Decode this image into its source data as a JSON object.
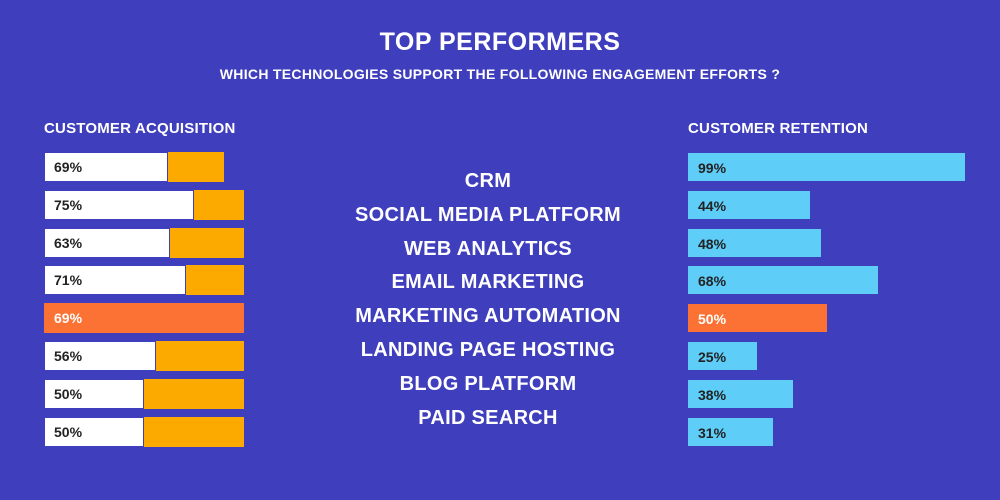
{
  "title": "TOP PERFORMERS",
  "subtitle": "WHICH TECHNOLOGIES SUPPORT THE FOLLOWING ENGAGEMENT EFFORTS ?",
  "colors": {
    "background": "#3f3ebd",
    "acquisition_bar": "#fdaa00",
    "retention_bar": "#5ecdf8",
    "highlight": "#fb7234",
    "text": "#ffffff"
  },
  "chart_data": {
    "type": "bar",
    "categories": [
      "CRM",
      "SOCIAL MEDIA PLATFORM",
      "WEB ANALYTICS",
      "EMAIL MARKETING",
      "MARKETING AUTOMATION",
      "LANDING PAGE HOSTING",
      "BLOG PLATFORM",
      "PAID SEARCH"
    ],
    "highlight_index": 4,
    "series": [
      {
        "name": "CUSTOMER ACQUISITION",
        "values": [
          69,
          75,
          63,
          71,
          69,
          56,
          50,
          50
        ],
        "labels": [
          "69%",
          "75%",
          "63%",
          "71%",
          "69%",
          "56%",
          "50%",
          "50%"
        ],
        "bar_lengths": [
          0.9,
          1.0,
          1.0,
          1.0,
          1.0,
          1.0,
          1.0,
          1.0
        ]
      },
      {
        "name": "CUSTOMER RETENTION",
        "values": [
          99,
          44,
          48,
          68,
          50,
          25,
          38,
          31
        ],
        "labels": [
          "99%",
          "44%",
          "48%",
          "68%",
          "50%",
          "25%",
          "38%",
          "31%"
        ]
      }
    ],
    "xlim": [
      0,
      100
    ]
  }
}
